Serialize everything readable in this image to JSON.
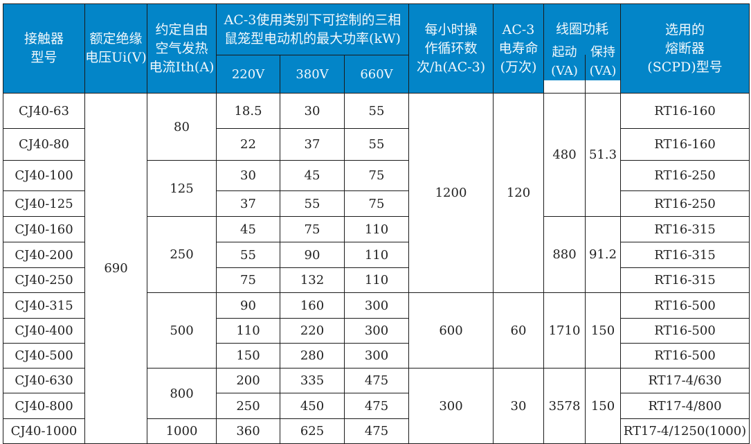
{
  "header_color": "#0385c8",
  "headers": {
    "model": "接触器\n型号",
    "ui": "额定绝缘\n电压Ui(V)",
    "ith": "约定自由\n空气发热\n电流Ith(A)",
    "power": "AC-3使用类别下可控制的三相\n鼠笼型电动机的最大功率(kW)",
    "v220": "220V",
    "v380": "380V",
    "v660": "660V",
    "ops": "每小时操\n作循环数\n次/h(AC-3)",
    "life": "AC-3\n电寿命\n(万次)",
    "coil": "线圈功耗",
    "start": "起动\n(VA)",
    "hold": "保持\n(VA)",
    "fuse": "选用的\n熔断器\n(SCPD)型号"
  },
  "rows": [
    {
      "model": "CJ40-63",
      "p220": "18.5",
      "p380": "30",
      "p660": "55",
      "fuse": "RT16-160"
    },
    {
      "model": "CJ40-80",
      "p220": "22",
      "p380": "37",
      "p660": "55",
      "fuse": "RT16-160"
    },
    {
      "model": "CJ40-100",
      "p220": "30",
      "p380": "45",
      "p660": "75",
      "fuse": "RT16-250"
    },
    {
      "model": "CJ40-125",
      "p220": "37",
      "p380": "55",
      "p660": "75",
      "fuse": "RT16-250"
    },
    {
      "model": "CJ40-160",
      "p220": "45",
      "p380": "75",
      "p660": "110",
      "fuse": "RT16-315"
    },
    {
      "model": "CJ40-200",
      "p220": "55",
      "p380": "90",
      "p660": "110",
      "fuse": "RT16-315"
    },
    {
      "model": "CJ40-250",
      "p220": "75",
      "p380": "132",
      "p660": "110",
      "fuse": "RT16-315"
    },
    {
      "model": "CJ40-315",
      "p220": "90",
      "p380": "160",
      "p660": "300",
      "fuse": "RT16-500"
    },
    {
      "model": "CJ40-400",
      "p220": "110",
      "p380": "220",
      "p660": "300",
      "fuse": "RT16-500"
    },
    {
      "model": "CJ40-500",
      "p220": "150",
      "p380": "280",
      "p660": "300",
      "fuse": "RT16-500"
    },
    {
      "model": "CJ40-630",
      "p220": "200",
      "p380": "335",
      "p660": "475",
      "fuse": "RT17-4/630"
    },
    {
      "model": "CJ40-800",
      "p220": "250",
      "p380": "450",
      "p660": "475",
      "fuse": "RT17-4/800"
    },
    {
      "model": "CJ40-1000",
      "p220": "360",
      "p380": "625",
      "p660": "475",
      "fuse": "RT17-4/1250(1000)"
    }
  ],
  "ui_groups": [
    {
      "value": "690",
      "span": 13
    }
  ],
  "ith_groups": [
    {
      "value": "80",
      "span": 2
    },
    {
      "value": "125",
      "span": 2
    },
    {
      "value": "250",
      "span": 3
    },
    {
      "value": "500",
      "span": 3
    },
    {
      "value": "800",
      "span": 2
    },
    {
      "value": "1000",
      "span": 1
    }
  ],
  "ops_groups": [
    {
      "value": "1200",
      "span": 7
    },
    {
      "value": "600",
      "span": 3
    },
    {
      "value": "300",
      "span": 3
    }
  ],
  "life_groups": [
    {
      "value": "120",
      "span": 7
    },
    {
      "value": "60",
      "span": 3
    },
    {
      "value": "30",
      "span": 3
    }
  ],
  "start_groups": [
    {
      "value": "480",
      "span": 4
    },
    {
      "value": "880",
      "span": 3
    },
    {
      "value": "1710",
      "span": 3
    },
    {
      "value": "3578",
      "span": 3
    }
  ],
  "hold_groups": [
    {
      "value": "51.3",
      "span": 4
    },
    {
      "value": "91.2",
      "span": 3
    },
    {
      "value": "150",
      "span": 3
    },
    {
      "value": "150",
      "span": 3
    }
  ]
}
